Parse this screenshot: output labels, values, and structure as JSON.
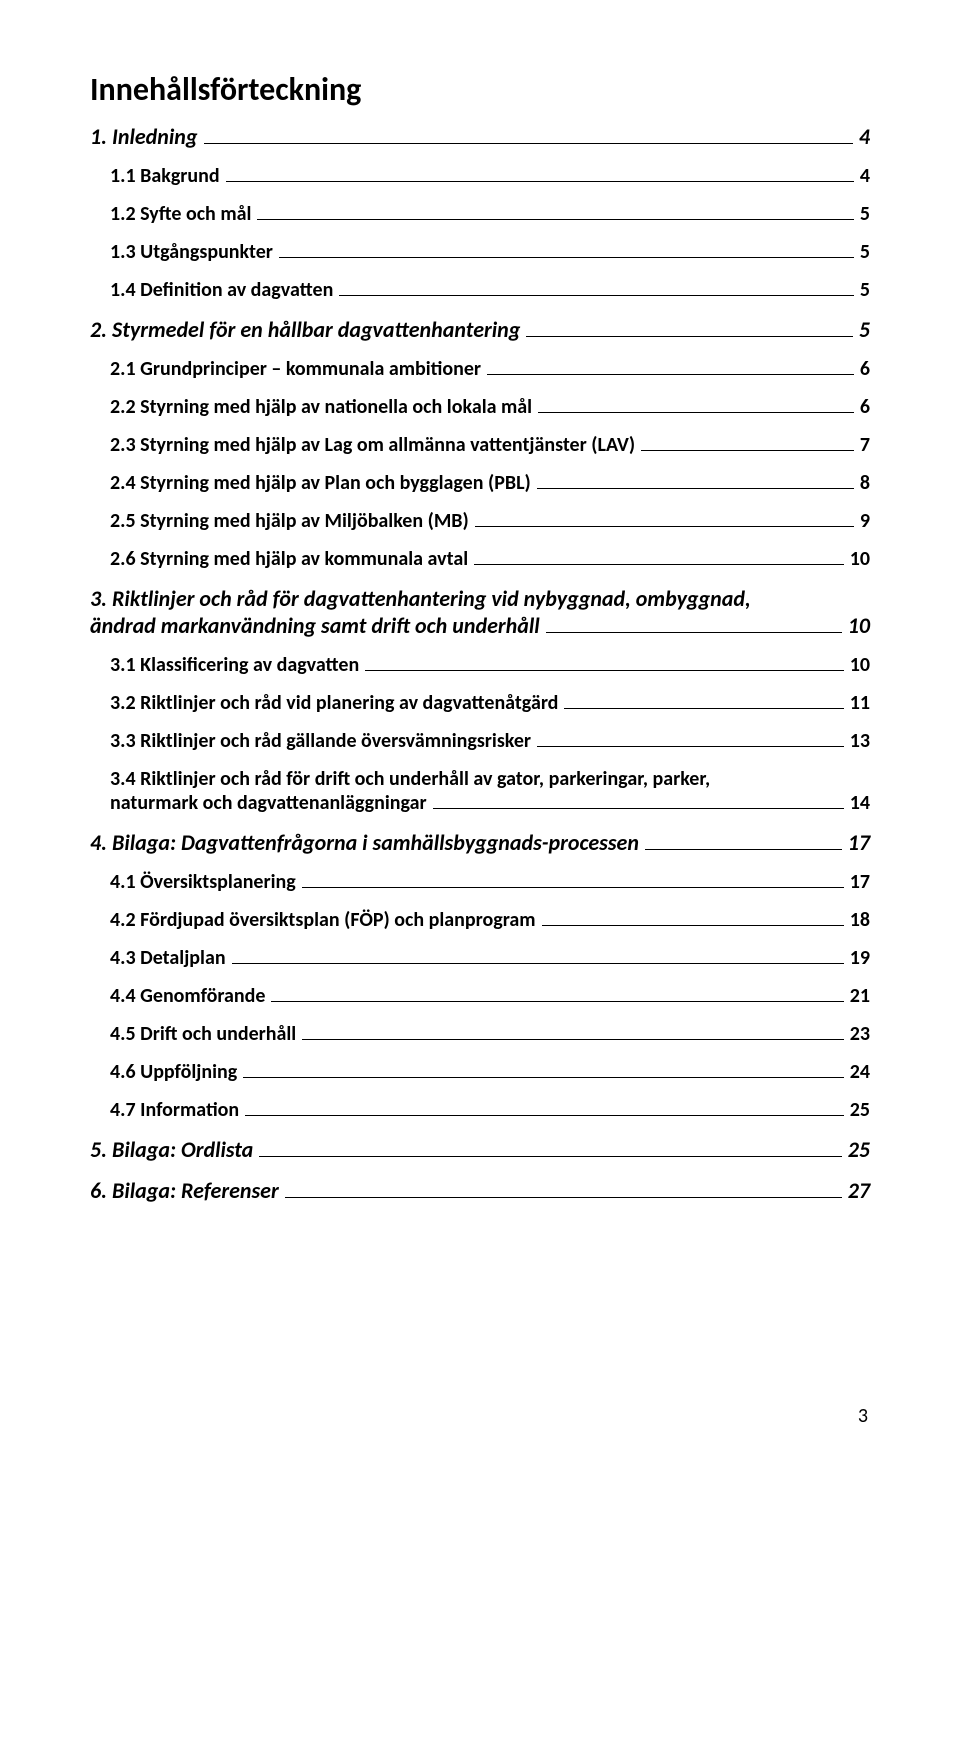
{
  "title": "Innehållsförteckning",
  "entries": [
    {
      "level": 1,
      "label": "1. Inledning",
      "page": "4"
    },
    {
      "level": 2,
      "label": "1.1 Bakgrund",
      "page": "4"
    },
    {
      "level": 2,
      "label": "1.2 Syfte och mål",
      "page": "5"
    },
    {
      "level": 2,
      "label": "1.3 Utgångspunkter",
      "page": "5"
    },
    {
      "level": 2,
      "label": "1.4 Definition av dagvatten",
      "page": "5"
    },
    {
      "level": 1,
      "label": "2. Styrmedel för en hållbar dagvattenhantering",
      "page": "5"
    },
    {
      "level": 2,
      "label": "2.1 Grundprinciper – kommunala ambitioner",
      "page": "6"
    },
    {
      "level": 2,
      "label": "2.2 Styrning med hjälp av nationella och lokala mål",
      "page": "6"
    },
    {
      "level": 2,
      "label": "2.3 Styrning med hjälp av Lag om allmänna vattentjänster (LAV)",
      "page": "7"
    },
    {
      "level": 2,
      "label": "2.4 Styrning med hjälp av Plan och bygglagen (PBL)",
      "page": "8"
    },
    {
      "level": 2,
      "label": "2.5 Styrning med hjälp av Miljöbalken (MB)",
      "page": "9"
    },
    {
      "level": 2,
      "label": "2.6 Styrning med hjälp av kommunala avtal",
      "page": "10"
    },
    {
      "level": 1,
      "label_line1": "3. Riktlinjer och råd för dagvattenhantering  vid nybyggnad, ombyggnad,",
      "label_line2": "ändrad markanvändning samt drift och underhåll",
      "page": "10",
      "multiline": true
    },
    {
      "level": 2,
      "label": "3.1 Klassificering av dagvatten",
      "page": "10"
    },
    {
      "level": 2,
      "label": "3.2 Riktlinjer och råd vid planering av dagvattenåtgärd",
      "page": "11"
    },
    {
      "level": 2,
      "label": "3.3 Riktlinjer och råd gällande översvämningsrisker",
      "page": "13"
    },
    {
      "level": 2,
      "label_line1": "3.4 Riktlinjer och råd för drift och underhåll  av gator, parkeringar, parker,",
      "label_line2": "naturmark och dagvattenanläggningar",
      "page": "14",
      "multiline": true
    },
    {
      "level": 1,
      "label": "4. Bilaga: Dagvattenfrågorna i samhällsbyggnads-processen",
      "page": "17"
    },
    {
      "level": 2,
      "label": "4.1 Översiktsplanering",
      "page": "17"
    },
    {
      "level": 2,
      "label": "4.2 Fördjupad översiktsplan (FÖP) och planprogram",
      "page": "18"
    },
    {
      "level": 2,
      "label": "4.3 Detaljplan",
      "page": "19"
    },
    {
      "level": 2,
      "label": "4.4 Genomförande",
      "page": "21"
    },
    {
      "level": 2,
      "label": "4.5 Drift och underhåll",
      "page": "23"
    },
    {
      "level": 2,
      "label": "4.6 Uppföljning",
      "page": "24"
    },
    {
      "level": 2,
      "label": "4.7 Information",
      "page": "25"
    },
    {
      "level": 1,
      "label": "5. Bilaga: Ordlista",
      "page": "25"
    },
    {
      "level": 1,
      "label": "6. Bilaga: Referenser",
      "page": "27"
    }
  ],
  "footer_page_number": "3"
}
